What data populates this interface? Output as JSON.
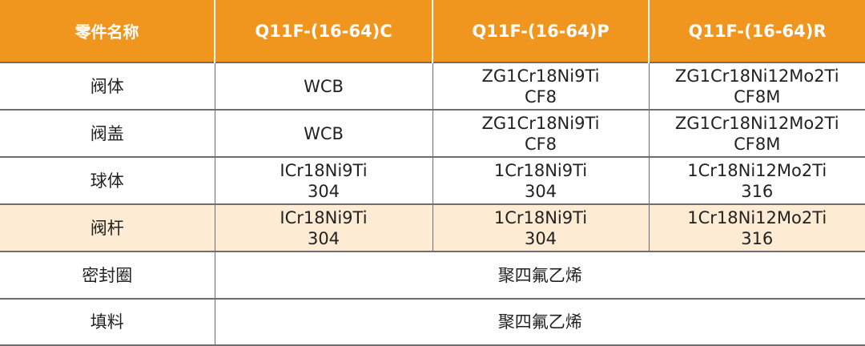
{
  "colors": {
    "header_bg": "#F0961E",
    "highlight_row_bg": "#FDEBD3"
  },
  "headers": [
    "零件名称",
    "Q11F-(16-64)C",
    "Q11F-(16-64)P",
    "Q11F-(16-64)R"
  ],
  "rows": [
    {
      "part": "阀体",
      "c": [
        "WCB"
      ],
      "p": [
        "ZG1Cr18Ni9Ti",
        "CF8"
      ],
      "r": [
        "ZG1Cr18Ni12Mo2Ti",
        "CF8M"
      ]
    },
    {
      "part": "阀盖",
      "c": [
        "WCB"
      ],
      "p": [
        "ZG1Cr18Ni9Ti",
        "CF8"
      ],
      "r": [
        "ZG1Cr18Ni12Mo2Ti",
        "CF8M"
      ]
    },
    {
      "part": "球体",
      "c": [
        "ICr18Ni9Ti",
        "304"
      ],
      "p": [
        "1Cr18Ni9Ti",
        "304"
      ],
      "r": [
        "1Cr18Ni12Mo2Ti",
        "316"
      ]
    },
    {
      "part": "阀杆",
      "c": [
        "ICr18Ni9Ti",
        "304"
      ],
      "p": [
        "1Cr18Ni9Ti",
        "304"
      ],
      "r": [
        "1Cr18Ni12Mo2Ti",
        "316"
      ]
    },
    {
      "part": "密封圈",
      "merged": "聚四氟乙烯"
    },
    {
      "part": "填料",
      "merged": "聚四氟乙烯"
    }
  ]
}
